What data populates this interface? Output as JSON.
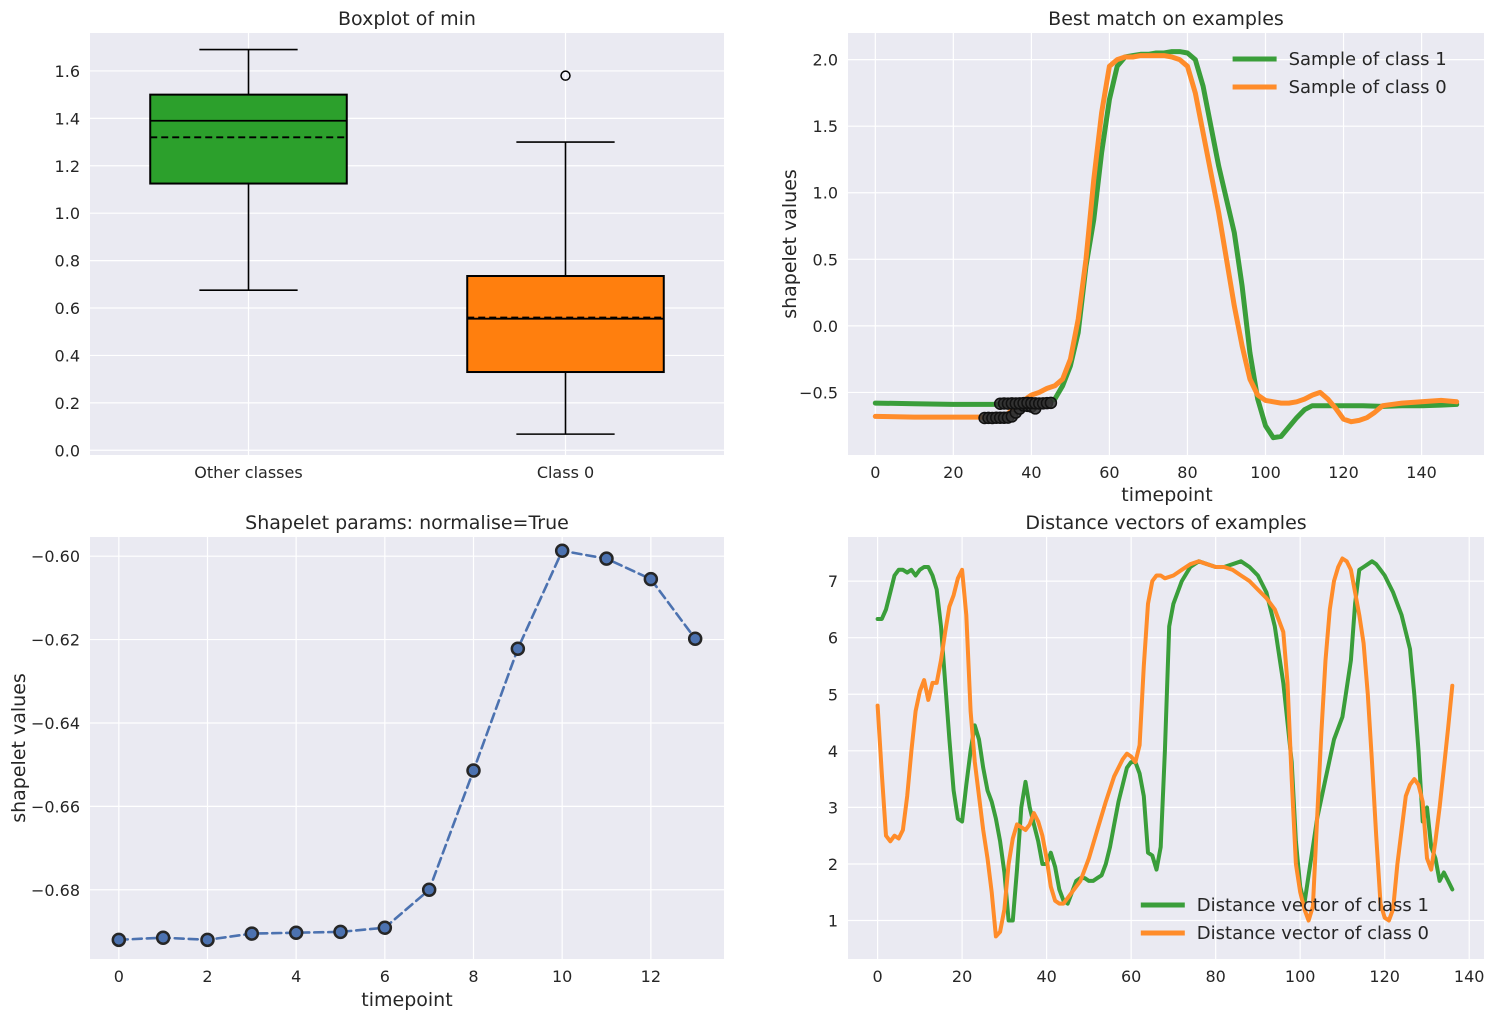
{
  "chart_data": [
    {
      "type": "box",
      "title": "Boxplot of min",
      "xlabel": "",
      "ylabel": "",
      "categories": [
        "Other classes",
        "Class 0"
      ],
      "ylim": [
        -0.02,
        1.76
      ],
      "yticks": [
        0.0,
        0.2,
        0.4,
        0.6,
        0.8,
        1.0,
        1.2,
        1.4,
        1.6
      ],
      "ytick_labels": [
        "0.0",
        "0.2",
        "0.4",
        "0.6",
        "0.8",
        "1.0",
        "1.2",
        "1.4",
        "1.6"
      ],
      "grid": true,
      "boxes": [
        {
          "category": "Other classes",
          "color": "#2ca02c",
          "whisker_low": 0.675,
          "q1": 1.125,
          "median": 1.39,
          "mean": 1.32,
          "q3": 1.5,
          "whisker_high": 1.69,
          "outliers": []
        },
        {
          "category": "Class 0",
          "color": "#ff7f0e",
          "whisker_low": 0.068,
          "q1": 0.33,
          "median": 0.555,
          "mean": 0.56,
          "q3": 0.735,
          "whisker_high": 1.3,
          "outliers": [
            1.58
          ]
        }
      ]
    },
    {
      "type": "line",
      "title": "Best match on examples",
      "xlabel": "timepoint",
      "ylabel": "shapelet values",
      "xlim": [
        -7,
        156
      ],
      "ylim": [
        -0.97,
        2.2
      ],
      "xticks": [
        0,
        20,
        40,
        60,
        80,
        100,
        120,
        140
      ],
      "xtick_labels": [
        "0",
        "20",
        "40",
        "60",
        "80",
        "100",
        "120",
        "140"
      ],
      "yticks": [
        -0.5,
        0.0,
        0.5,
        1.0,
        1.5,
        2.0
      ],
      "ytick_labels": [
        "−0.5",
        "0.0",
        "0.5",
        "1.0",
        "1.5",
        "2.0"
      ],
      "grid": true,
      "legend_position": "top-right",
      "series": [
        {
          "name": "Sample of class 1",
          "color": "#3a9e3a",
          "x": [
            0,
            10,
            20,
            30,
            40,
            44,
            46,
            48,
            50,
            52,
            54,
            56,
            58,
            60,
            62,
            64,
            66,
            68,
            70,
            72,
            74,
            76,
            78,
            80,
            82,
            84,
            86,
            88,
            90,
            92,
            94,
            96,
            98,
            100,
            102,
            104,
            106,
            108,
            110,
            112,
            114,
            116,
            118,
            120,
            125,
            130,
            135,
            140,
            145,
            149
          ],
          "y": [
            -0.58,
            -0.585,
            -0.59,
            -0.59,
            -0.585,
            -0.58,
            -0.55,
            -0.45,
            -0.3,
            -0.05,
            0.45,
            0.8,
            1.3,
            1.7,
            1.95,
            2.02,
            2.03,
            2.04,
            2.04,
            2.05,
            2.05,
            2.06,
            2.06,
            2.05,
            2.0,
            1.8,
            1.5,
            1.2,
            0.95,
            0.7,
            0.3,
            -0.2,
            -0.55,
            -0.75,
            -0.84,
            -0.83,
            -0.76,
            -0.69,
            -0.63,
            -0.6,
            -0.6,
            -0.6,
            -0.6,
            -0.6,
            -0.6,
            -0.605,
            -0.6,
            -0.6,
            -0.595,
            -0.59
          ]
        },
        {
          "name": "Sample of class 0",
          "color": "#ff8c2a",
          "x": [
            0,
            10,
            20,
            28,
            30,
            32,
            34,
            36,
            38,
            40,
            42,
            44,
            46,
            48,
            50,
            52,
            54,
            56,
            58,
            60,
            62,
            64,
            66,
            68,
            70,
            72,
            74,
            76,
            78,
            80,
            82,
            84,
            86,
            88,
            90,
            92,
            94,
            96,
            98,
            100,
            102,
            104,
            106,
            108,
            110,
            112,
            114,
            116,
            118,
            120,
            122,
            124,
            126,
            128,
            130,
            135,
            140,
            145,
            149
          ],
          "y": [
            -0.68,
            -0.685,
            -0.685,
            -0.685,
            -0.685,
            -0.68,
            -0.66,
            -0.6,
            -0.56,
            -0.52,
            -0.5,
            -0.47,
            -0.45,
            -0.4,
            -0.25,
            0.05,
            0.5,
            1.1,
            1.6,
            1.95,
            2.0,
            2.02,
            2.02,
            2.03,
            2.03,
            2.03,
            2.03,
            2.02,
            2.0,
            1.95,
            1.75,
            1.45,
            1.15,
            0.85,
            0.5,
            0.15,
            -0.15,
            -0.4,
            -0.52,
            -0.56,
            -0.57,
            -0.58,
            -0.58,
            -0.57,
            -0.55,
            -0.52,
            -0.5,
            -0.55,
            -0.62,
            -0.7,
            -0.72,
            -0.71,
            -0.69,
            -0.65,
            -0.6,
            -0.58,
            -0.57,
            -0.56,
            -0.57
          ]
        },
        {
          "name": "",
          "color": "#1c1c1c",
          "markers": true,
          "x": [
            28,
            29,
            30,
            31,
            32,
            33,
            34,
            35,
            36,
            37,
            38,
            39,
            40,
            41
          ],
          "y": [
            -0.692,
            -0.691,
            -0.692,
            -0.69,
            -0.69,
            -0.69,
            -0.689,
            -0.68,
            -0.651,
            -0.622,
            -0.599,
            -0.601,
            -0.606,
            -0.62
          ]
        },
        {
          "name": "",
          "color": "#1c1c1c",
          "markers": true,
          "x": [
            32,
            33,
            34,
            35,
            36,
            37,
            38,
            39,
            40,
            41,
            42,
            43,
            44,
            45
          ],
          "y": [
            -0.585,
            -0.583,
            -0.584,
            -0.582,
            -0.583,
            -0.582,
            -0.58,
            -0.578,
            -0.58,
            -0.582,
            -0.583,
            -0.582,
            -0.58,
            -0.578
          ]
        }
      ]
    },
    {
      "type": "line",
      "title": "Shapelet params: normalise=True",
      "xlabel": "timepoint",
      "ylabel": "shapelet values",
      "xlim": [
        -0.65,
        13.65
      ],
      "ylim": [
        -0.6966,
        -0.5954
      ],
      "xticks": [
        0,
        2,
        4,
        6,
        8,
        10,
        12
      ],
      "xtick_labels": [
        "0",
        "2",
        "4",
        "6",
        "8",
        "10",
        "12"
      ],
      "yticks": [
        -0.68,
        -0.66,
        -0.64,
        -0.62,
        -0.6
      ],
      "ytick_labels": [
        "−0.68",
        "−0.66",
        "−0.64",
        "−0.62",
        "−0.60"
      ],
      "grid": true,
      "series": [
        {
          "name": "",
          "color": "#4c72b0",
          "dashed": true,
          "markers": true,
          "x": [
            0,
            1,
            2,
            3,
            4,
            5,
            6,
            7,
            8,
            9,
            10,
            11,
            12,
            13
          ],
          "y": [
            -0.692,
            -0.6915,
            -0.692,
            -0.6905,
            -0.6903,
            -0.6901,
            -0.6891,
            -0.68,
            -0.6514,
            -0.6222,
            -0.5987,
            -0.6006,
            -0.6055,
            -0.6198
          ]
        }
      ]
    },
    {
      "type": "line",
      "title": "Distance vectors of examples",
      "xlabel": "",
      "ylabel": "",
      "xlim": [
        -7,
        143.5
      ],
      "ylim": [
        0.32,
        7.78
      ],
      "xticks": [
        0,
        20,
        40,
        60,
        80,
        100,
        120,
        140
      ],
      "xtick_labels": [
        "0",
        "20",
        "40",
        "60",
        "80",
        "100",
        "120",
        "140"
      ],
      "yticks": [
        1,
        2,
        3,
        4,
        5,
        6,
        7
      ],
      "ytick_labels": [
        "1",
        "2",
        "3",
        "4",
        "5",
        "6",
        "7"
      ],
      "grid": true,
      "legend_position": "bottom-right",
      "series": [
        {
          "name": "Distance vector of class 1",
          "color": "#3a9e3a",
          "x": [
            0,
            1,
            2,
            3,
            4,
            5,
            6,
            7,
            8,
            9,
            10,
            11,
            12,
            13,
            14,
            15,
            16,
            17,
            18,
            19,
            20,
            21,
            22,
            23,
            24,
            25,
            26,
            27,
            28,
            29,
            30,
            31,
            32,
            33,
            34,
            35,
            36,
            37,
            38,
            39,
            40,
            41,
            42,
            43,
            44,
            45,
            46,
            47,
            48,
            49,
            50,
            51,
            52,
            53,
            54,
            55,
            56,
            57,
            58,
            59,
            60,
            61,
            62,
            63,
            64,
            65,
            66,
            67,
            68,
            69,
            70,
            72,
            74,
            76,
            78,
            80,
            82,
            84,
            86,
            88,
            90,
            92,
            94,
            96,
            98,
            99,
            100,
            101,
            102,
            103,
            104,
            106,
            108,
            110,
            112,
            113,
            114,
            115,
            116,
            117,
            118,
            119,
            120,
            121,
            122,
            124,
            126,
            127,
            128,
            129,
            130,
            131,
            132,
            133,
            134,
            135,
            136
          ],
          "y": [
            6.33,
            6.33,
            6.5,
            6.8,
            7.1,
            7.2,
            7.2,
            7.15,
            7.2,
            7.1,
            7.2,
            7.25,
            7.25,
            7.1,
            6.85,
            6.2,
            5.2,
            4.2,
            3.3,
            2.8,
            2.75,
            3.4,
            4.0,
            4.45,
            4.2,
            3.7,
            3.3,
            3.1,
            2.8,
            2.4,
            1.85,
            1.0,
            1.0,
            1.9,
            3.0,
            3.45,
            3.0,
            2.7,
            2.4,
            2.0,
            2.0,
            2.2,
            1.95,
            1.55,
            1.35,
            1.3,
            1.5,
            1.7,
            1.75,
            1.75,
            1.7,
            1.7,
            1.75,
            1.8,
            2.0,
            2.3,
            2.7,
            3.1,
            3.4,
            3.7,
            3.8,
            3.8,
            3.6,
            3.2,
            2.2,
            2.15,
            1.9,
            2.3,
            4.0,
            6.2,
            6.6,
            7.0,
            7.25,
            7.35,
            7.3,
            7.25,
            7.25,
            7.3,
            7.35,
            7.25,
            7.1,
            6.8,
            6.2,
            5.2,
            3.8,
            2.4,
            1.6,
            1.3,
            1.8,
            2.3,
            2.8,
            3.5,
            4.2,
            4.6,
            5.6,
            6.6,
            7.2,
            7.25,
            7.3,
            7.35,
            7.3,
            7.2,
            7.1,
            6.95,
            6.8,
            6.4,
            5.8,
            5.0,
            4.0,
            2.75,
            3.0,
            2.3,
            2.1,
            1.7,
            1.85,
            1.7,
            1.55
          ]
        },
        {
          "name": "Distance vector of class 0",
          "color": "#ff8c2a",
          "x": [
            0,
            1,
            2,
            3,
            4,
            5,
            6,
            7,
            8,
            9,
            10,
            11,
            12,
            13,
            14,
            15,
            16,
            17,
            18,
            19,
            20,
            21,
            22,
            23,
            24,
            25,
            26,
            27,
            28,
            29,
            30,
            31,
            32,
            33,
            34,
            35,
            36,
            37,
            38,
            39,
            40,
            41,
            42,
            43,
            44,
            45,
            46,
            48,
            50,
            52,
            54,
            56,
            58,
            59,
            60,
            61,
            62,
            63,
            64,
            65,
            66,
            67,
            68,
            70,
            72,
            74,
            76,
            78,
            80,
            82,
            84,
            86,
            88,
            90,
            92,
            94,
            96,
            97,
            98,
            99,
            100,
            101,
            102,
            103,
            104,
            105,
            106,
            107,
            108,
            109,
            110,
            111,
            112,
            113,
            114,
            115,
            116,
            117,
            118,
            119,
            120,
            121,
            122,
            123,
            124,
            125,
            126,
            127,
            128,
            129,
            130,
            131,
            132,
            133,
            134,
            135,
            136
          ],
          "y": [
            4.8,
            3.6,
            2.5,
            2.4,
            2.5,
            2.45,
            2.6,
            3.2,
            4.0,
            4.7,
            5.05,
            5.25,
            4.9,
            5.2,
            5.2,
            5.6,
            6.1,
            6.55,
            6.75,
            7.05,
            7.2,
            6.4,
            4.7,
            3.8,
            3.2,
            2.6,
            2.1,
            1.5,
            0.72,
            0.8,
            1.2,
            2.0,
            2.45,
            2.7,
            2.65,
            2.6,
            2.7,
            2.9,
            2.75,
            2.5,
            2.1,
            1.6,
            1.35,
            1.3,
            1.3,
            1.4,
            1.5,
            1.7,
            2.1,
            2.6,
            3.1,
            3.55,
            3.85,
            3.95,
            3.9,
            3.8,
            4.1,
            5.5,
            6.6,
            7.0,
            7.1,
            7.1,
            7.05,
            7.1,
            7.2,
            7.3,
            7.35,
            7.3,
            7.25,
            7.25,
            7.2,
            7.1,
            7.0,
            6.85,
            6.7,
            6.5,
            6.1,
            5.2,
            3.5,
            2.0,
            1.5,
            1.2,
            1.0,
            1.25,
            2.8,
            4.3,
            5.6,
            6.5,
            7.0,
            7.25,
            7.4,
            7.35,
            7.2,
            6.8,
            6.4,
            5.9,
            5.0,
            3.8,
            2.5,
            1.3,
            1.05,
            1.0,
            1.2,
            2.0,
            2.6,
            3.2,
            3.4,
            3.5,
            3.4,
            3.1,
            2.1,
            1.9,
            2.4,
            3.0,
            3.7,
            4.4,
            5.15
          ]
        }
      ]
    }
  ]
}
